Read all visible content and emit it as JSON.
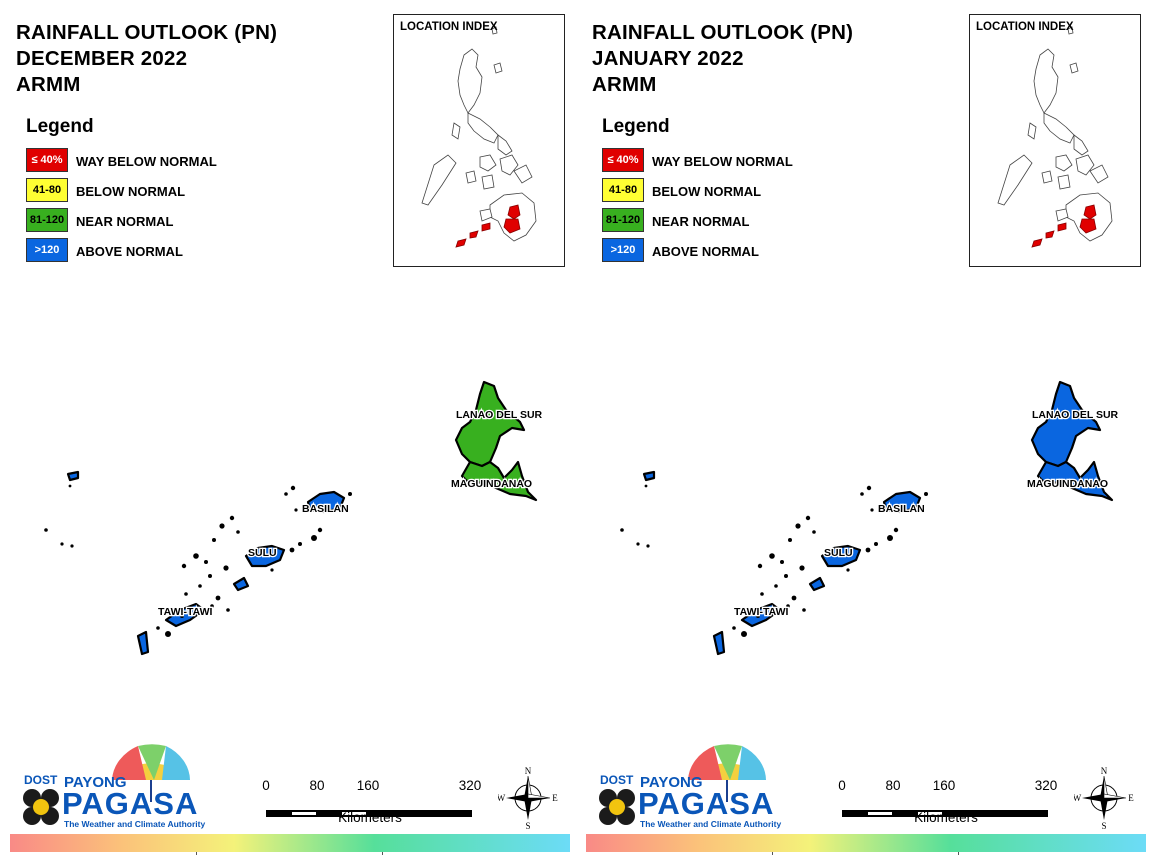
{
  "panels": [
    {
      "title": [
        "RAINFALL OUTLOOK (PN)",
        "DECEMBER 2022",
        "ARMM"
      ],
      "provinces": {
        "lanao_del_sur": {
          "label": "LANAO DEL SUR",
          "category": "near_normal"
        },
        "maguindanao": {
          "label": "MAGUINDANAO",
          "category": "near_normal"
        },
        "basilan": {
          "label": "BASILAN",
          "category": "above_normal"
        },
        "sulu": {
          "label": "SULU",
          "category": "above_normal"
        },
        "tawi_tawi": {
          "label": "TAWI-TAWI",
          "category": "above_normal"
        }
      }
    },
    {
      "title": [
        "RAINFALL OUTLOOK (PN)",
        "JANUARY 2022",
        "ARMM"
      ],
      "provinces": {
        "lanao_del_sur": {
          "label": "LANAO DEL SUR",
          "category": "above_normal"
        },
        "maguindanao": {
          "label": "MAGUINDANAO",
          "category": "above_normal"
        },
        "basilan": {
          "label": "BASILAN",
          "category": "above_normal"
        },
        "sulu": {
          "label": "SULU",
          "category": "above_normal"
        },
        "tawi_tawi": {
          "label": "TAWI-TAWI",
          "category": "above_normal"
        }
      }
    }
  ],
  "legend": {
    "title": "Legend",
    "items": [
      {
        "key": "way_below_normal",
        "range": "≤ 40%",
        "label": "WAY BELOW NORMAL",
        "color": "#e00000",
        "text_color": "#ffffff"
      },
      {
        "key": "below_normal",
        "range": "41-80",
        "label": "BELOW NORMAL",
        "color": "#ffff33",
        "text_color": "#000000"
      },
      {
        "key": "near_normal",
        "range": "81-120",
        "label": "NEAR NORMAL",
        "color": "#38b01f",
        "text_color": "#000000"
      },
      {
        "key": "above_normal",
        "range": ">120",
        "label": "ABOVE NORMAL",
        "color": "#0a66e0",
        "text_color": "#ffffff"
      }
    ]
  },
  "location_index": {
    "title": "LOCATION INDEX",
    "highlight_color": "#e00000"
  },
  "scale": {
    "ticks": [
      "0",
      "80",
      "160",
      "320"
    ],
    "units": "Kilometers"
  },
  "compass": {
    "n": "N",
    "s": "S",
    "e": "E",
    "w": "W"
  },
  "logo": {
    "dost": "DOST",
    "payong": "PAYONG",
    "pagasa": "PAGASA",
    "tagline": "The Weather and Climate Authority"
  }
}
